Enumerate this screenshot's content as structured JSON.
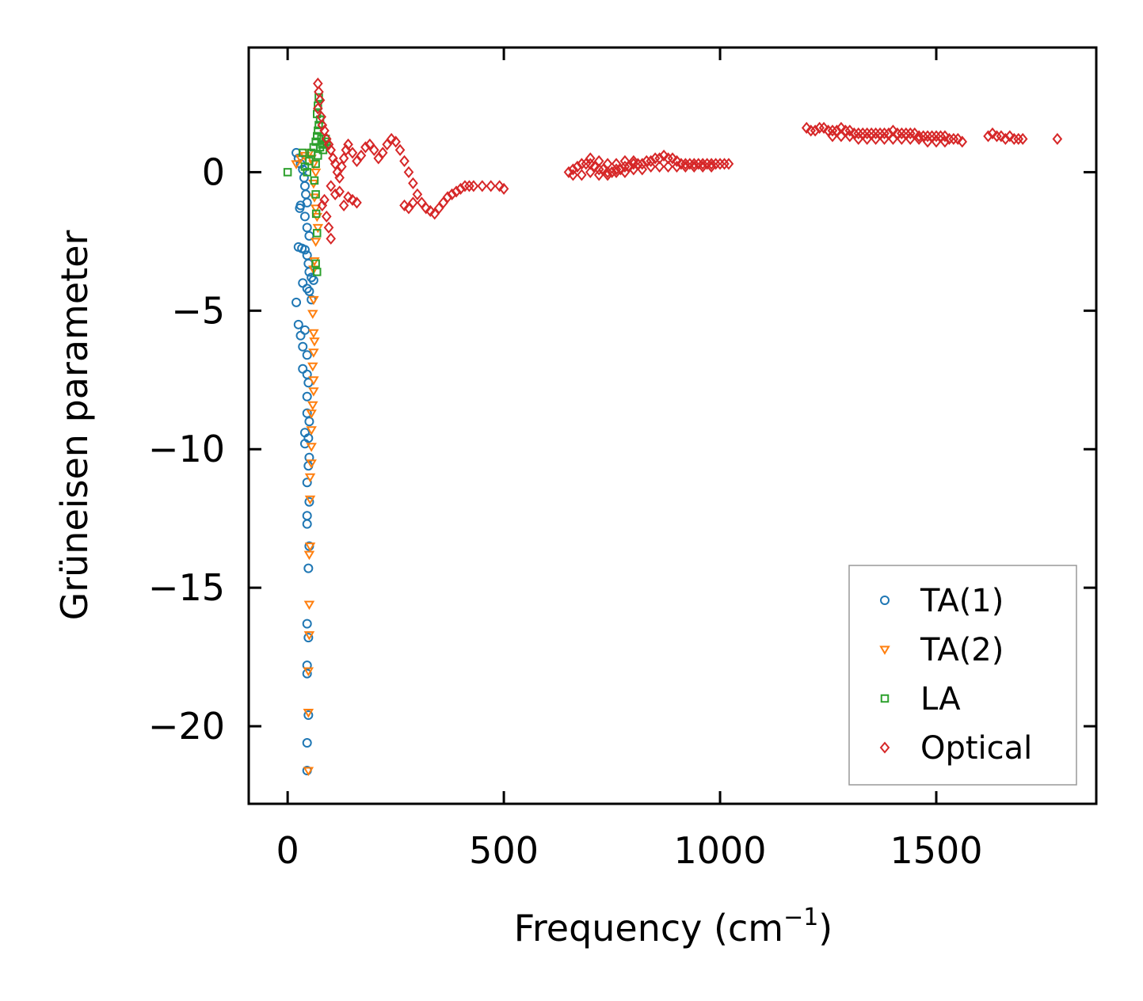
{
  "chart_data": {
    "type": "scatter",
    "title": "",
    "xlabel": "Frequency (cm",
    "xlabel_sup": "−1",
    "xlabel_end": ")",
    "ylabel": "Grüneisen parameter",
    "xlim": [
      -90,
      1870
    ],
    "ylim": [
      -22.8,
      4.5
    ],
    "x_ticks": [
      0,
      500,
      1000,
      1500
    ],
    "x_tick_labels": [
      "0",
      "500",
      "1000",
      "1500"
    ],
    "y_ticks": [
      0,
      -5,
      -10,
      -15,
      -20
    ],
    "y_tick_labels": [
      "0",
      "−5",
      "−10",
      "−15",
      "−20"
    ],
    "grid": false,
    "legend_position": "lower-right",
    "series": [
      {
        "name": "TA(1)",
        "marker": "circle",
        "color": "#1f77b4",
        "points": [
          [
            20,
            0.7
          ],
          [
            25,
            0.5
          ],
          [
            30,
            0.3
          ],
          [
            35,
            0.1
          ],
          [
            38,
            -0.2
          ],
          [
            40,
            -0.5
          ],
          [
            42,
            -0.8
          ],
          [
            45,
            -1.1
          ],
          [
            30,
            -1.2
          ],
          [
            28,
            -1.3
          ],
          [
            40,
            -1.6
          ],
          [
            45,
            -2.0
          ],
          [
            50,
            -2.3
          ],
          [
            25,
            -2.7
          ],
          [
            33,
            -2.75
          ],
          [
            40,
            -2.8
          ],
          [
            45,
            -3.0
          ],
          [
            48,
            -3.3
          ],
          [
            50,
            -3.6
          ],
          [
            55,
            -3.8
          ],
          [
            60,
            -3.9
          ],
          [
            35,
            -4.0
          ],
          [
            45,
            -4.2
          ],
          [
            50,
            -4.3
          ],
          [
            20,
            -4.7
          ],
          [
            55,
            -4.6
          ],
          [
            25,
            -5.5
          ],
          [
            40,
            -5.7
          ],
          [
            30,
            -5.9
          ],
          [
            35,
            -6.3
          ],
          [
            45,
            -6.6
          ],
          [
            35,
            -7.1
          ],
          [
            45,
            -7.3
          ],
          [
            48,
            -7.6
          ],
          [
            45,
            -8.1
          ],
          [
            45,
            -8.7
          ],
          [
            50,
            -9.0
          ],
          [
            40,
            -9.4
          ],
          [
            48,
            -9.6
          ],
          [
            40,
            -9.8
          ],
          [
            50,
            -10.3
          ],
          [
            48,
            -10.6
          ],
          [
            45,
            -11.2
          ],
          [
            50,
            -11.9
          ],
          [
            45,
            -12.4
          ],
          [
            45,
            -12.7
          ],
          [
            50,
            -13.5
          ],
          [
            48,
            -14.3
          ],
          [
            45,
            -16.3
          ],
          [
            48,
            -16.8
          ],
          [
            45,
            -17.8
          ],
          [
            45,
            -18.1
          ],
          [
            48,
            -19.6
          ],
          [
            45,
            -20.6
          ],
          [
            45,
            -21.6
          ]
        ]
      },
      {
        "name": "TA(2)",
        "marker": "triangle-down",
        "color": "#ff7f0e",
        "points": [
          [
            20,
            0.3
          ],
          [
            30,
            0.5
          ],
          [
            40,
            0.6
          ],
          [
            50,
            0.7
          ],
          [
            55,
            0.5
          ],
          [
            60,
            0.3
          ],
          [
            65,
            0.0
          ],
          [
            60,
            -0.4
          ],
          [
            62,
            -0.9
          ],
          [
            65,
            -1.3
          ],
          [
            68,
            -1.6
          ],
          [
            70,
            -2.0
          ],
          [
            65,
            -2.5
          ],
          [
            62,
            -3.2
          ],
          [
            60,
            -3.5
          ],
          [
            60,
            -4.6
          ],
          [
            58,
            -5.1
          ],
          [
            60,
            -5.8
          ],
          [
            62,
            -6.1
          ],
          [
            60,
            -6.5
          ],
          [
            58,
            -7.0
          ],
          [
            60,
            -7.5
          ],
          [
            60,
            -7.9
          ],
          [
            58,
            -8.4
          ],
          [
            55,
            -8.7
          ],
          [
            55,
            -9.3
          ],
          [
            55,
            -9.9
          ],
          [
            55,
            -10.5
          ],
          [
            52,
            -11.0
          ],
          [
            52,
            -11.8
          ],
          [
            52,
            -13.5
          ],
          [
            50,
            -13.8
          ],
          [
            50,
            -15.6
          ],
          [
            50,
            -16.7
          ],
          [
            48,
            -18.0
          ],
          [
            48,
            -19.5
          ],
          [
            48,
            -21.6
          ]
        ]
      },
      {
        "name": "LA",
        "marker": "square",
        "color": "#2ca02c",
        "points": [
          [
            0,
            0.0
          ],
          [
            35,
            0.7
          ],
          [
            40,
            0.2
          ],
          [
            45,
            0.0
          ],
          [
            50,
            0.4
          ],
          [
            55,
            0.7
          ],
          [
            60,
            0.9
          ],
          [
            65,
            1.1
          ],
          [
            68,
            1.3
          ],
          [
            70,
            1.5
          ],
          [
            72,
            1.7
          ],
          [
            75,
            1.9
          ],
          [
            68,
            2.1
          ],
          [
            70,
            2.4
          ],
          [
            72,
            2.7
          ],
          [
            78,
            1.2
          ],
          [
            80,
            1.0
          ],
          [
            82,
            0.8
          ],
          [
            85,
            1.0
          ],
          [
            88,
            1.2
          ],
          [
            90,
            1.1
          ],
          [
            75,
            0.9
          ],
          [
            70,
            0.6
          ],
          [
            65,
            0.3
          ],
          [
            62,
            -0.3
          ],
          [
            65,
            -0.8
          ],
          [
            66,
            -1.5
          ],
          [
            68,
            -2.2
          ],
          [
            65,
            -3.3
          ],
          [
            68,
            -3.6
          ]
        ]
      },
      {
        "name": "Optical",
        "marker": "diamond",
        "color": "#d62728",
        "points": [
          [
            70,
            3.2
          ],
          [
            72,
            2.9
          ],
          [
            75,
            2.6
          ],
          [
            70,
            2.3
          ],
          [
            78,
            2.0
          ],
          [
            80,
            1.7
          ],
          [
            85,
            1.5
          ],
          [
            90,
            1.2
          ],
          [
            95,
            1.0
          ],
          [
            100,
            0.8
          ],
          [
            105,
            0.5
          ],
          [
            110,
            0.3
          ],
          [
            115,
            0.0
          ],
          [
            120,
            -0.2
          ],
          [
            125,
            0.2
          ],
          [
            130,
            0.5
          ],
          [
            135,
            0.8
          ],
          [
            140,
            1.0
          ],
          [
            150,
            0.7
          ],
          [
            160,
            0.4
          ],
          [
            170,
            0.6
          ],
          [
            180,
            0.9
          ],
          [
            190,
            1.0
          ],
          [
            200,
            0.8
          ],
          [
            210,
            0.5
          ],
          [
            220,
            0.7
          ],
          [
            230,
            1.0
          ],
          [
            240,
            1.2
          ],
          [
            250,
            1.1
          ],
          [
            260,
            0.8
          ],
          [
            270,
            0.4
          ],
          [
            280,
            0.0
          ],
          [
            290,
            -0.4
          ],
          [
            300,
            -0.8
          ],
          [
            310,
            -1.1
          ],
          [
            320,
            -1.3
          ],
          [
            330,
            -1.4
          ],
          [
            340,
            -1.5
          ],
          [
            350,
            -1.3
          ],
          [
            360,
            -1.1
          ],
          [
            370,
            -0.9
          ],
          [
            380,
            -0.8
          ],
          [
            390,
            -0.7
          ],
          [
            400,
            -0.6
          ],
          [
            410,
            -0.5
          ],
          [
            420,
            -0.5
          ],
          [
            430,
            -0.5
          ],
          [
            450,
            -0.5
          ],
          [
            470,
            -0.5
          ],
          [
            490,
            -0.5
          ],
          [
            500,
            -0.6
          ],
          [
            80,
            -1.2
          ],
          [
            90,
            -1.6
          ],
          [
            95,
            -2.0
          ],
          [
            100,
            -2.4
          ],
          [
            85,
            -1.0
          ],
          [
            110,
            -0.8
          ],
          [
            130,
            -1.2
          ],
          [
            150,
            -1.0
          ],
          [
            160,
            -1.1
          ],
          [
            270,
            -1.2
          ],
          [
            280,
            -1.3
          ],
          [
            290,
            -1.1
          ],
          [
            100,
            -0.5
          ],
          [
            120,
            -0.7
          ],
          [
            140,
            -0.9
          ],
          [
            650,
            0.0
          ],
          [
            660,
            0.1
          ],
          [
            670,
            0.2
          ],
          [
            680,
            0.3
          ],
          [
            690,
            0.3
          ],
          [
            700,
            0.3
          ],
          [
            710,
            0.2
          ],
          [
            720,
            0.1
          ],
          [
            730,
            0.1
          ],
          [
            740,
            0.0
          ],
          [
            750,
            0.0
          ],
          [
            760,
            0.1
          ],
          [
            770,
            0.1
          ],
          [
            780,
            0.2
          ],
          [
            790,
            0.2
          ],
          [
            800,
            0.3
          ],
          [
            810,
            0.3
          ],
          [
            820,
            0.3
          ],
          [
            830,
            0.4
          ],
          [
            840,
            0.4
          ],
          [
            850,
            0.5
          ],
          [
            860,
            0.5
          ],
          [
            870,
            0.6
          ],
          [
            880,
            0.5
          ],
          [
            890,
            0.5
          ],
          [
            900,
            0.4
          ],
          [
            910,
            0.3
          ],
          [
            920,
            0.3
          ],
          [
            930,
            0.3
          ],
          [
            940,
            0.3
          ],
          [
            950,
            0.3
          ],
          [
            960,
            0.3
          ],
          [
            970,
            0.3
          ],
          [
            980,
            0.3
          ],
          [
            990,
            0.3
          ],
          [
            1000,
            0.3
          ],
          [
            1010,
            0.3
          ],
          [
            1020,
            0.3
          ],
          [
            660,
            -0.1
          ],
          [
            680,
            -0.1
          ],
          [
            700,
            0.0
          ],
          [
            720,
            -0.1
          ],
          [
            740,
            -0.1
          ],
          [
            760,
            0.0
          ],
          [
            780,
            0.0
          ],
          [
            800,
            0.1
          ],
          [
            820,
            0.1
          ],
          [
            840,
            0.2
          ],
          [
            860,
            0.2
          ],
          [
            880,
            0.2
          ],
          [
            900,
            0.2
          ],
          [
            920,
            0.2
          ],
          [
            940,
            0.2
          ],
          [
            960,
            0.2
          ],
          [
            980,
            0.2
          ],
          [
            700,
            0.5
          ],
          [
            720,
            0.4
          ],
          [
            740,
            0.3
          ],
          [
            760,
            0.3
          ],
          [
            780,
            0.4
          ],
          [
            800,
            0.4
          ],
          [
            1200,
            1.6
          ],
          [
            1210,
            1.5
          ],
          [
            1220,
            1.5
          ],
          [
            1230,
            1.6
          ],
          [
            1240,
            1.6
          ],
          [
            1250,
            1.5
          ],
          [
            1260,
            1.5
          ],
          [
            1270,
            1.5
          ],
          [
            1280,
            1.6
          ],
          [
            1290,
            1.5
          ],
          [
            1300,
            1.5
          ],
          [
            1310,
            1.4
          ],
          [
            1320,
            1.4
          ],
          [
            1330,
            1.4
          ],
          [
            1340,
            1.4
          ],
          [
            1350,
            1.4
          ],
          [
            1360,
            1.4
          ],
          [
            1370,
            1.4
          ],
          [
            1380,
            1.4
          ],
          [
            1390,
            1.4
          ],
          [
            1400,
            1.5
          ],
          [
            1410,
            1.4
          ],
          [
            1420,
            1.4
          ],
          [
            1430,
            1.4
          ],
          [
            1440,
            1.4
          ],
          [
            1450,
            1.4
          ],
          [
            1460,
            1.3
          ],
          [
            1470,
            1.3
          ],
          [
            1480,
            1.3
          ],
          [
            1490,
            1.3
          ],
          [
            1500,
            1.3
          ],
          [
            1510,
            1.3
          ],
          [
            1520,
            1.3
          ],
          [
            1530,
            1.2
          ],
          [
            1540,
            1.2
          ],
          [
            1550,
            1.2
          ],
          [
            1560,
            1.1
          ],
          [
            1260,
            1.3
          ],
          [
            1280,
            1.3
          ],
          [
            1300,
            1.3
          ],
          [
            1320,
            1.2
          ],
          [
            1340,
            1.2
          ],
          [
            1360,
            1.2
          ],
          [
            1380,
            1.2
          ],
          [
            1400,
            1.2
          ],
          [
            1420,
            1.2
          ],
          [
            1440,
            1.2
          ],
          [
            1460,
            1.2
          ],
          [
            1480,
            1.1
          ],
          [
            1500,
            1.1
          ],
          [
            1520,
            1.1
          ],
          [
            1620,
            1.3
          ],
          [
            1630,
            1.4
          ],
          [
            1640,
            1.3
          ],
          [
            1650,
            1.3
          ],
          [
            1660,
            1.2
          ],
          [
            1670,
            1.3
          ],
          [
            1680,
            1.2
          ],
          [
            1690,
            1.2
          ],
          [
            1700,
            1.2
          ],
          [
            1780,
            1.2
          ]
        ]
      }
    ]
  }
}
